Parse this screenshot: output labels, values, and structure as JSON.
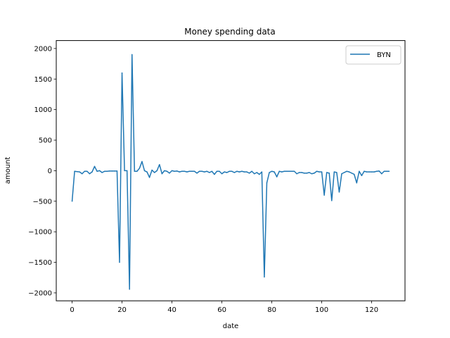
{
  "chart_data": {
    "type": "line",
    "title": "Money spending data",
    "xlabel": "date",
    "ylabel": "amount",
    "xlim": [
      -6.35,
      133.35
    ],
    "ylim": [
      -2130,
      2130
    ],
    "xticks": [
      0,
      20,
      40,
      60,
      80,
      100,
      120
    ],
    "yticks": [
      -2000,
      -1500,
      -1000,
      -500,
      0,
      500,
      1000,
      1500,
      2000
    ],
    "grid": false,
    "legend_position": "top-right",
    "series": [
      {
        "name": "BYN",
        "color": "#1f77b4",
        "x": [
          0,
          1,
          2,
          3,
          4,
          5,
          6,
          7,
          8,
          9,
          10,
          11,
          12,
          13,
          14,
          15,
          16,
          17,
          18,
          19,
          20,
          21,
          22,
          23,
          24,
          25,
          26,
          27,
          28,
          29,
          30,
          31,
          32,
          33,
          34,
          35,
          36,
          37,
          38,
          39,
          40,
          41,
          42,
          43,
          44,
          45,
          46,
          47,
          48,
          49,
          50,
          51,
          52,
          53,
          54,
          55,
          56,
          57,
          58,
          59,
          60,
          61,
          62,
          63,
          64,
          65,
          66,
          67,
          68,
          69,
          70,
          71,
          72,
          73,
          74,
          75,
          76,
          77,
          78,
          79,
          80,
          81,
          82,
          83,
          84,
          85,
          86,
          87,
          88,
          89,
          90,
          91,
          92,
          93,
          94,
          95,
          96,
          97,
          98,
          99,
          100,
          101,
          102,
          103,
          104,
          105,
          106,
          107,
          108,
          109,
          110,
          111,
          112,
          113,
          114,
          115,
          116,
          117,
          118,
          119,
          120,
          121,
          122,
          123,
          124,
          125,
          126,
          127
        ],
        "values": [
          -500,
          -10,
          -15,
          -20,
          -50,
          -10,
          -10,
          -50,
          -20,
          70,
          -10,
          0,
          -30,
          -10,
          -10,
          -5,
          -5,
          -5,
          -5,
          -1500,
          1600,
          0,
          0,
          -1940,
          1900,
          -10,
          -10,
          40,
          150,
          0,
          -20,
          -110,
          10,
          -30,
          0,
          100,
          -50,
          0,
          -10,
          -40,
          0,
          -10,
          -5,
          -20,
          -10,
          -10,
          -20,
          -10,
          -10,
          -10,
          -40,
          -10,
          -10,
          -20,
          -10,
          -30,
          -10,
          -60,
          -10,
          -10,
          -50,
          -20,
          -30,
          -10,
          -10,
          -30,
          -10,
          -20,
          -10,
          -20,
          -20,
          -40,
          -10,
          -50,
          -30,
          -60,
          -20,
          -1740,
          -200,
          -30,
          -10,
          -20,
          -100,
          -10,
          -20,
          -10,
          -10,
          -10,
          -10,
          -10,
          -50,
          -30,
          -30,
          -40,
          -40,
          -30,
          -50,
          -40,
          -10,
          -20,
          -20,
          -400,
          -30,
          -40,
          -490,
          -20,
          -30,
          -350,
          -50,
          -30,
          -10,
          -20,
          -40,
          -60,
          -200,
          -10,
          -80,
          -10,
          -20,
          -20,
          -20,
          -20,
          -10,
          -5,
          -50,
          -10,
          -10,
          -10
        ]
      }
    ]
  }
}
